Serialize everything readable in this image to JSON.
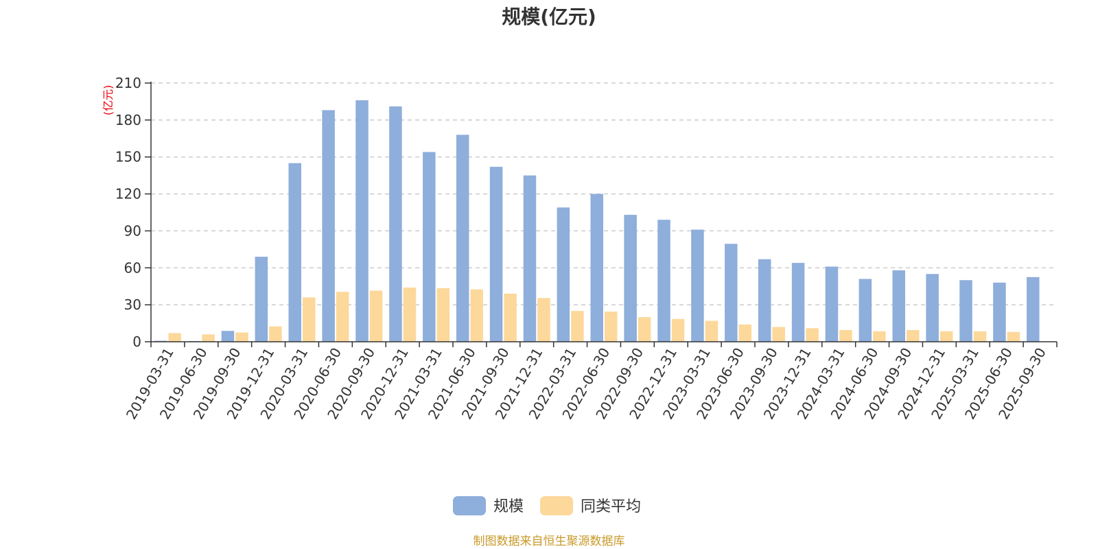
{
  "chart_data": {
    "type": "bar",
    "title": "规模(亿元)",
    "ylabel": "(亿元)",
    "xlabel": "",
    "ylim": [
      0,
      210
    ],
    "yticks": [
      0,
      30,
      60,
      90,
      120,
      150,
      180,
      210
    ],
    "grid": true,
    "legend_position": "bottom",
    "categories": [
      "2019-03-31",
      "2019-06-30",
      "2019-09-30",
      "2019-12-31",
      "2020-03-31",
      "2020-06-30",
      "2020-09-30",
      "2020-12-31",
      "2021-03-31",
      "2021-06-30",
      "2021-09-30",
      "2021-12-31",
      "2022-03-31",
      "2022-06-30",
      "2022-09-30",
      "2022-12-31",
      "2023-03-31",
      "2023-06-30",
      "2023-09-30",
      "2023-12-31",
      "2024-03-31",
      "2024-06-30",
      "2024-09-30",
      "2024-12-31",
      "2025-03-31",
      "2025-06-30",
      "2025-09-30"
    ],
    "series": [
      {
        "name": "规模",
        "color": "#8eaedb",
        "values": [
          0.8,
          0.5,
          8.8,
          69,
          145,
          188,
          196,
          191,
          154,
          168,
          142,
          135,
          109,
          120,
          103,
          99,
          91,
          79.5,
          67,
          64,
          61,
          51,
          58,
          55,
          50,
          48,
          52.5
        ]
      },
      {
        "name": "同类平均",
        "color": "#fdd89b",
        "values": [
          7,
          6,
          7.5,
          12.5,
          36,
          40.5,
          41.5,
          44,
          43.5,
          42.5,
          39,
          35.5,
          25,
          24.5,
          20,
          18.5,
          17,
          14,
          12,
          11,
          9.5,
          8.5,
          9.5,
          8.5,
          8.5,
          8,
          null
        ]
      }
    ],
    "source": "制图数据来自恒生聚源数据库",
    "title_color": "#333333",
    "unit_color": "#e8000b",
    "source_color": "#c89a2a",
    "axis_color": "#333333",
    "grid_color": "#cccccc"
  }
}
